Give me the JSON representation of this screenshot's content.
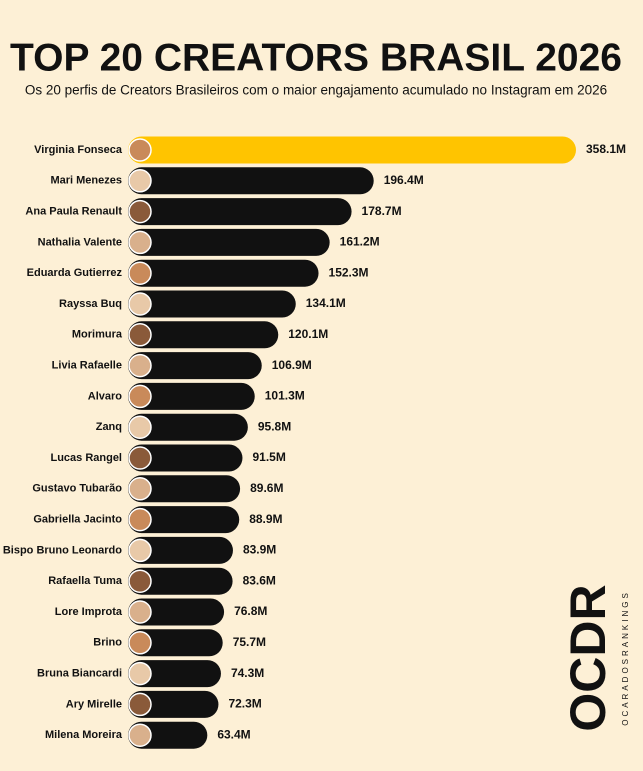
{
  "chart_data": {
    "type": "hbar",
    "title": "TOP 20 CREATORS BRASIL 2026",
    "subtitle": "Os 20 perfis de Creators Brasileiros com o maior engajamento acumulado no Instagram em 2026",
    "categories": [
      "Virginia Fonseca",
      "Mari Menezes",
      "Ana Paula Renault",
      "Nathalia Valente",
      "Eduarda Gutierrez",
      "Rayssa Buq",
      "Morimura",
      "Livia Rafaelle",
      "Alvaro",
      "Zanq",
      "Lucas Rangel",
      "Gustavo Tubarão",
      "Gabriella Jacinto",
      "Bispo Bruno Leonardo",
      "Rafaella Tuma",
      "Lore Improta",
      "Brino",
      "Bruna Biancardi",
      "Ary Mirelle",
      "Milena Moreira"
    ],
    "values": [
      358.1,
      196.4,
      178.7,
      161.2,
      152.3,
      134.1,
      120.1,
      106.9,
      101.3,
      95.8,
      91.5,
      89.6,
      88.9,
      83.9,
      83.6,
      76.8,
      75.7,
      74.3,
      72.3,
      63.4
    ],
    "value_labels": [
      "358.1M",
      "196.4M",
      "178.7M",
      "161.2M",
      "152.3M",
      "134.1M",
      "120.1M",
      "106.9M",
      "101.3M",
      "95.8M",
      "91.5M",
      "89.6M",
      "88.9M",
      "83.9M",
      "83.6M",
      "76.8M",
      "75.7M",
      "74.3M",
      "72.3M",
      "63.4M"
    ],
    "colors": [
      "#ffc400",
      "#111111",
      "#111111",
      "#111111",
      "#111111",
      "#111111",
      "#111111",
      "#111111",
      "#111111",
      "#111111",
      "#111111",
      "#111111",
      "#111111",
      "#111111",
      "#111111",
      "#111111",
      "#111111",
      "#111111",
      "#111111",
      "#111111"
    ]
  },
  "brand": {
    "logo": "OCDR",
    "tagline": "OCARADOSRANKINGS"
  }
}
